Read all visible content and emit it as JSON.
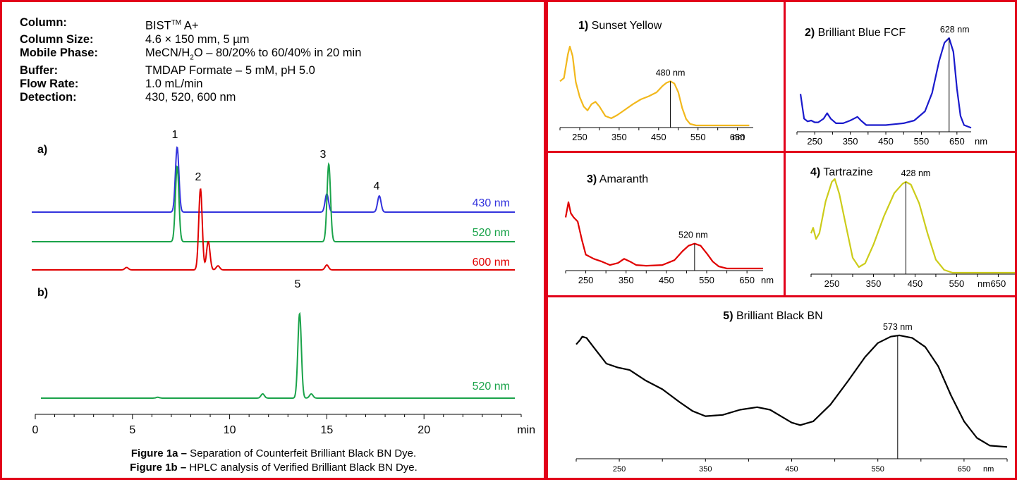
{
  "conditions": {
    "column_label": "Column:",
    "column_value_main": "BIST",
    "column_value_sup": "TM",
    "column_value_suffix": " A+",
    "size_label": "Column Size:",
    "size_value": "4.6 × 150 mm, 5 µm",
    "mobile_label": "Mobile Phase:",
    "mobile_value_1": "MeCN/H",
    "mobile_value_sub": "2",
    "mobile_value_2": "O – 80/20% to 60/40% in 20 min",
    "buffer_label": "Buffer:",
    "buffer_value": "TMDAP Formate – 5 mM, pH 5.0",
    "flow_label": "Flow Rate:",
    "flow_value": "1.0 mL/min",
    "detection_label": "Detection:",
    "detection_value": "430, 520, 600 nm"
  },
  "captions": {
    "fig1a_bold": "Figure 1a –",
    "fig1a_text": " Separation of Counterfeit Brilliant Black BN Dye.",
    "fig1b_bold": "Figure 1b –",
    "fig1b_text": " HPLC analysis of Verified Brilliant Black BN Dye."
  },
  "chart_data": [
    {
      "id": "chromatogram",
      "type": "line",
      "xlabel": "min",
      "xlim": [
        0,
        25
      ],
      "xticks": [
        0,
        5,
        10,
        15,
        20
      ],
      "panel_labels": [
        "a)",
        "b)"
      ],
      "series": [
        {
          "name": "430 nm",
          "panel": "a)",
          "color": "#3333dd",
          "peaks": [
            {
              "t": 7.3,
              "h": 1.0,
              "label": "1"
            },
            {
              "t": 15.0,
              "h": 0.28
            },
            {
              "t": 17.7,
              "h": 0.25,
              "label": "4"
            }
          ]
        },
        {
          "name": "520 nm",
          "panel": "a)",
          "color": "#1aa34a",
          "peaks": [
            {
              "t": 7.3,
              "h": 0.97
            },
            {
              "t": 15.1,
              "h": 1.0,
              "label": "3"
            }
          ]
        },
        {
          "name": "600 nm",
          "panel": "a)",
          "color": "#e00000",
          "peaks": [
            {
              "t": 4.7,
              "h": 0.03
            },
            {
              "t": 8.5,
              "h": 1.0,
              "label": "2"
            },
            {
              "t": 8.9,
              "h": 0.35
            },
            {
              "t": 9.4,
              "h": 0.05
            },
            {
              "t": 15.0,
              "h": 0.06
            }
          ]
        },
        {
          "name": "520 nm",
          "panel": "b)",
          "color": "#1aa34a",
          "peaks": [
            {
              "t": 6.3,
              "h": 0.01
            },
            {
              "t": 11.7,
              "h": 0.05
            },
            {
              "t": 13.6,
              "h": 1.0,
              "label": "5"
            },
            {
              "t": 14.2,
              "h": 0.05
            }
          ]
        }
      ]
    },
    {
      "id": "spectrum-1",
      "type": "line",
      "title_num": "1)",
      "title": "Sunset Yellow",
      "xlabel": "nm",
      "xticks": [
        250,
        350,
        450,
        550,
        650
      ],
      "peak_label": "480 nm",
      "peak_x": 480,
      "color": "#f2b81c",
      "points": [
        [
          200,
          0.56
        ],
        [
          210,
          0.6
        ],
        [
          220,
          0.9
        ],
        [
          225,
          1.0
        ],
        [
          232,
          0.88
        ],
        [
          240,
          0.55
        ],
        [
          250,
          0.36
        ],
        [
          260,
          0.24
        ],
        [
          270,
          0.19
        ],
        [
          280,
          0.27
        ],
        [
          290,
          0.3
        ],
        [
          300,
          0.24
        ],
        [
          315,
          0.12
        ],
        [
          330,
          0.09
        ],
        [
          345,
          0.13
        ],
        [
          365,
          0.2
        ],
        [
          385,
          0.27
        ],
        [
          405,
          0.33
        ],
        [
          425,
          0.37
        ],
        [
          445,
          0.42
        ],
        [
          460,
          0.5
        ],
        [
          470,
          0.54
        ],
        [
          480,
          0.56
        ],
        [
          490,
          0.53
        ],
        [
          500,
          0.42
        ],
        [
          510,
          0.22
        ],
        [
          520,
          0.08
        ],
        [
          530,
          0.02
        ],
        [
          545,
          0.0
        ],
        [
          680,
          0.0
        ]
      ]
    },
    {
      "id": "spectrum-2",
      "type": "line",
      "title_num": "2)",
      "title": "Brilliant Blue FCF",
      "xlabel": "nm",
      "xticks": [
        250,
        350,
        450,
        550,
        650
      ],
      "peak_label": "628 nm",
      "peak_x": 628,
      "color": "#1a1acc",
      "points": [
        [
          210,
          0.39
        ],
        [
          220,
          0.12
        ],
        [
          230,
          0.09
        ],
        [
          240,
          0.1
        ],
        [
          250,
          0.08
        ],
        [
          260,
          0.08
        ],
        [
          275,
          0.12
        ],
        [
          285,
          0.18
        ],
        [
          295,
          0.12
        ],
        [
          310,
          0.07
        ],
        [
          330,
          0.07
        ],
        [
          350,
          0.1
        ],
        [
          370,
          0.14
        ],
        [
          380,
          0.1
        ],
        [
          395,
          0.05
        ],
        [
          450,
          0.05
        ],
        [
          500,
          0.07
        ],
        [
          530,
          0.1
        ],
        [
          560,
          0.2
        ],
        [
          580,
          0.4
        ],
        [
          600,
          0.75
        ],
        [
          615,
          0.95
        ],
        [
          628,
          1.0
        ],
        [
          640,
          0.85
        ],
        [
          650,
          0.45
        ],
        [
          660,
          0.15
        ],
        [
          670,
          0.05
        ],
        [
          690,
          0.02
        ]
      ]
    },
    {
      "id": "spectrum-3",
      "type": "line",
      "title_num": "3)",
      "title": "Amaranth",
      "xlabel": "nm",
      "xticks": [
        250,
        350,
        450,
        550,
        650
      ],
      "peak_label": "520 nm",
      "peak_x": 520,
      "color": "#e00000",
      "points": [
        [
          200,
          0.74
        ],
        [
          207,
          0.96
        ],
        [
          213,
          0.8
        ],
        [
          220,
          0.74
        ],
        [
          230,
          0.68
        ],
        [
          240,
          0.42
        ],
        [
          250,
          0.2
        ],
        [
          270,
          0.14
        ],
        [
          290,
          0.1
        ],
        [
          310,
          0.05
        ],
        [
          330,
          0.08
        ],
        [
          345,
          0.14
        ],
        [
          360,
          0.1
        ],
        [
          375,
          0.05
        ],
        [
          400,
          0.04
        ],
        [
          440,
          0.05
        ],
        [
          470,
          0.12
        ],
        [
          490,
          0.25
        ],
        [
          505,
          0.33
        ],
        [
          520,
          0.36
        ],
        [
          535,
          0.33
        ],
        [
          550,
          0.22
        ],
        [
          565,
          0.1
        ],
        [
          580,
          0.03
        ],
        [
          600,
          0.0
        ],
        [
          690,
          0.0
        ]
      ]
    },
    {
      "id": "spectrum-4",
      "type": "line",
      "title_num": "4)",
      "title": "Tartrazine",
      "xlabel": "nm",
      "xticks": [
        250,
        350,
        450,
        550,
        650
      ],
      "peak_label": "428 nm",
      "peak_x": 428,
      "color": "#cccc1a",
      "points": [
        [
          200,
          0.42
        ],
        [
          205,
          0.48
        ],
        [
          212,
          0.36
        ],
        [
          220,
          0.42
        ],
        [
          235,
          0.76
        ],
        [
          250,
          0.97
        ],
        [
          257,
          1.0
        ],
        [
          268,
          0.84
        ],
        [
          285,
          0.48
        ],
        [
          300,
          0.16
        ],
        [
          315,
          0.06
        ],
        [
          330,
          0.1
        ],
        [
          350,
          0.3
        ],
        [
          375,
          0.6
        ],
        [
          400,
          0.85
        ],
        [
          420,
          0.95
        ],
        [
          428,
          0.97
        ],
        [
          440,
          0.94
        ],
        [
          460,
          0.74
        ],
        [
          480,
          0.42
        ],
        [
          500,
          0.14
        ],
        [
          520,
          0.03
        ],
        [
          540,
          0.0
        ],
        [
          690,
          0.0
        ]
      ]
    },
    {
      "id": "spectrum-5",
      "type": "line",
      "title_num": "5)",
      "title": "Brilliant Black BN",
      "xlabel": "nm",
      "xticks": [
        250,
        350,
        450,
        550,
        650
      ],
      "peak_label": "573 nm",
      "peak_x": 573,
      "color": "#000000",
      "points": [
        [
          200,
          0.87
        ],
        [
          204,
          0.9
        ],
        [
          207,
          0.93
        ],
        [
          212,
          0.92
        ],
        [
          220,
          0.85
        ],
        [
          235,
          0.72
        ],
        [
          248,
          0.69
        ],
        [
          262,
          0.67
        ],
        [
          280,
          0.59
        ],
        [
          300,
          0.52
        ],
        [
          320,
          0.42
        ],
        [
          335,
          0.35
        ],
        [
          350,
          0.31
        ],
        [
          370,
          0.32
        ],
        [
          390,
          0.36
        ],
        [
          410,
          0.38
        ],
        [
          425,
          0.36
        ],
        [
          440,
          0.3
        ],
        [
          450,
          0.26
        ],
        [
          460,
          0.24
        ],
        [
          475,
          0.27
        ],
        [
          495,
          0.4
        ],
        [
          515,
          0.58
        ],
        [
          535,
          0.77
        ],
        [
          550,
          0.88
        ],
        [
          565,
          0.93
        ],
        [
          575,
          0.94
        ],
        [
          590,
          0.92
        ],
        [
          605,
          0.85
        ],
        [
          620,
          0.7
        ],
        [
          635,
          0.47
        ],
        [
          650,
          0.27
        ],
        [
          665,
          0.14
        ],
        [
          680,
          0.08
        ],
        [
          700,
          0.07
        ]
      ]
    }
  ]
}
